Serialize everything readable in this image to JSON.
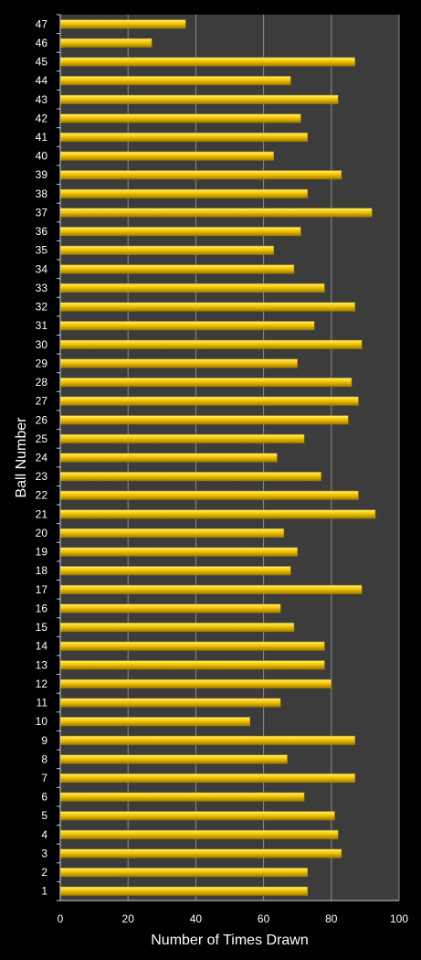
{
  "chart_data": {
    "type": "bar",
    "orientation": "horizontal",
    "title": "",
    "xlabel": "Number of Times Drawn",
    "ylabel": "Ball Number",
    "xlim": [
      0,
      100
    ],
    "xticks": [
      0,
      20,
      40,
      60,
      80,
      100
    ],
    "grid": true,
    "colors": {
      "bar": "#f5c400",
      "bar_highlight": "#fff27a",
      "bar_shadow": "#a07d00",
      "plot_background": "#3c3c3c",
      "page_background": "#000000",
      "gridline": "#8c8c8c",
      "text": "#ffffff"
    },
    "categories": [
      "1",
      "2",
      "3",
      "4",
      "5",
      "6",
      "7",
      "8",
      "9",
      "10",
      "11",
      "12",
      "13",
      "14",
      "15",
      "16",
      "17",
      "18",
      "19",
      "20",
      "21",
      "22",
      "23",
      "24",
      "25",
      "26",
      "27",
      "28",
      "29",
      "30",
      "31",
      "32",
      "33",
      "34",
      "35",
      "36",
      "37",
      "38",
      "39",
      "40",
      "41",
      "42",
      "43",
      "44",
      "45",
      "46",
      "47"
    ],
    "values": [
      73,
      73,
      83,
      82,
      81,
      72,
      87,
      67,
      87,
      56,
      65,
      80,
      78,
      78,
      69,
      65,
      89,
      68,
      70,
      66,
      93,
      88,
      77,
      64,
      72,
      85,
      88,
      86,
      70,
      89,
      75,
      87,
      78,
      69,
      63,
      71,
      92,
      73,
      83,
      63,
      73,
      71,
      82,
      68,
      87,
      27,
      37
    ]
  }
}
